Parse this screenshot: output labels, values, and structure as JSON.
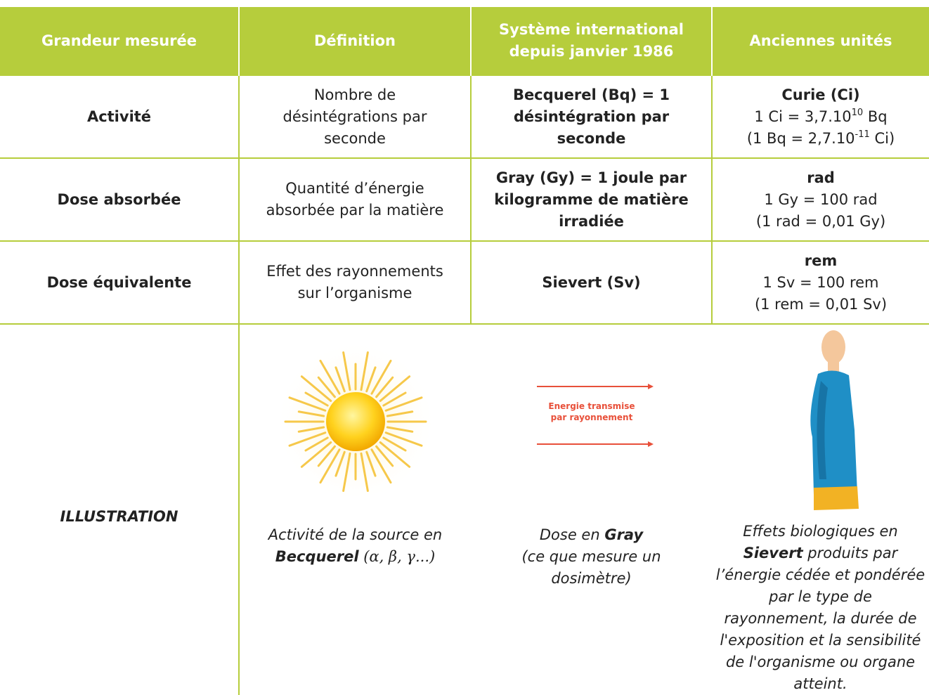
{
  "table": {
    "header": [
      "Grandeur mesurée",
      "Définition",
      "Système international depuis janvier 1986",
      "Anciennes unités"
    ],
    "rows": [
      {
        "quantity": "Activité",
        "definition": "Nombre de désintégrations par seconde",
        "si_unit": "Becquerel (Bq) = 1 désintégration par seconde",
        "old_unit": "Curie (Ci)",
        "conversion": [
          "1 Ci = 3,7.10",
          "10",
          " Bq"
        ],
        "inverse": [
          "(1 Bq = 2,7.10",
          "-11",
          " Ci)"
        ]
      },
      {
        "quantity": "Dose absorbée",
        "definition": "Quantité d’énergie absorbée par la matière",
        "si_unit": "Gray (Gy) = 1 joule par kilogramme de matière irradiée",
        "old_unit": "rad",
        "conversion": "1 Gy = 100 rad",
        "inverse": "(1 rad = 0,01 Gy)"
      },
      {
        "quantity": "Dose équivalente",
        "definition": "Effet des rayonnements sur l’organisme",
        "si_unit": "Sievert (Sv)",
        "old_unit": "rem",
        "conversion": "1 Sv = 100 rem",
        "inverse": "(1 rem = 0,01 Sv)"
      }
    ],
    "illustration": {
      "label": "ILLUSTRATION",
      "figure_text": [
        "Energie transmise",
        "par rayonnement"
      ],
      "captions": [
        [
          "Activité de la source en ",
          "Becquerel",
          " (α, β, γ...)"
        ],
        [
          "Dose en ",
          "Gray",
          "(ce que mesure un dosimètre)"
        ],
        [
          "Effets biologiques en ",
          "Sievert",
          " produits par l’énergie cédée et pondérée par le type de rayonnement, la durée de l'exposition et la sensibilité de l'organisme ou organe atteint."
        ]
      ]
    }
  }
}
